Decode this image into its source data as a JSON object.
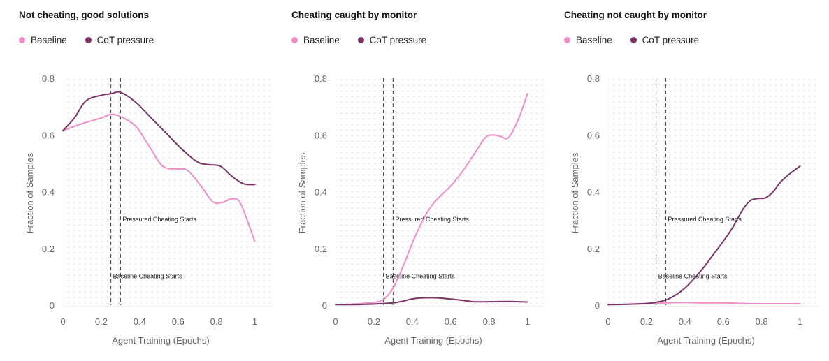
{
  "colors": {
    "baseline": "#f08cc8",
    "cot": "#7b3366"
  },
  "legend": {
    "baseline": "Baseline",
    "cot": "CoT pressure"
  },
  "chart_data": [
    {
      "type": "line",
      "title": "Not cheating, good solutions",
      "xlabel": "Agent Training (Epochs)",
      "ylabel": "Fraction of Samples",
      "xlim": [
        0,
        1.1
      ],
      "ylim": [
        0,
        0.8
      ],
      "xticks": [
        0,
        0.2,
        0.4,
        0.6,
        0.8,
        1
      ],
      "xtick_labels": [
        "0",
        "0.2",
        "0.4",
        "0.6",
        "0.8",
        "1"
      ],
      "yticks": [
        0,
        0.2,
        0.4,
        0.6,
        0.8
      ],
      "ytick_labels": [
        "0",
        "0.2",
        "0.4",
        "0.6",
        "0.8"
      ],
      "vlines": [
        {
          "x": 0.25,
          "label": "Baseline Cheating Starts",
          "label_y": 0.105
        },
        {
          "x": 0.3,
          "label": "Pressured Cheating Starts",
          "label_y": 0.305
        }
      ],
      "series": [
        {
          "name": "Baseline",
          "x": [
            0,
            0.1,
            0.2,
            0.25,
            0.3,
            0.38,
            0.45,
            0.52,
            0.6,
            0.65,
            0.72,
            0.78,
            0.83,
            0.88,
            0.92,
            0.96,
            1.0
          ],
          "y": [
            0.615,
            0.64,
            0.66,
            0.672,
            0.665,
            0.63,
            0.56,
            0.49,
            0.48,
            0.475,
            0.42,
            0.365,
            0.362,
            0.375,
            0.365,
            0.3,
            0.225
          ]
        },
        {
          "name": "CoT pressure",
          "x": [
            0,
            0.06,
            0.12,
            0.2,
            0.25,
            0.3,
            0.38,
            0.46,
            0.54,
            0.62,
            0.7,
            0.76,
            0.82,
            0.88,
            0.94,
            1.0
          ],
          "y": [
            0.615,
            0.66,
            0.72,
            0.74,
            0.745,
            0.75,
            0.715,
            0.66,
            0.605,
            0.55,
            0.505,
            0.495,
            0.49,
            0.455,
            0.428,
            0.425
          ]
        }
      ]
    },
    {
      "type": "line",
      "title": "Cheating caught by monitor",
      "xlabel": "Agent Training (Epochs)",
      "ylabel": "Fraction of Samples",
      "xlim": [
        0,
        1.1
      ],
      "ylim": [
        0,
        0.8
      ],
      "xticks": [
        0,
        0.2,
        0.4,
        0.6,
        0.8,
        1
      ],
      "xtick_labels": [
        "0",
        "0.2",
        "0.4",
        "0.6",
        "0.8",
        "1"
      ],
      "yticks": [
        0,
        0.2,
        0.4,
        0.6,
        0.8
      ],
      "ytick_labels": [
        "0",
        "0.2",
        "0.4",
        "0.6",
        "0.8"
      ],
      "vlines": [
        {
          "x": 0.25,
          "label": "Baseline Cheating Starts",
          "label_y": 0.105
        },
        {
          "x": 0.3,
          "label": "Pressured Cheating Starts",
          "label_y": 0.305
        }
      ],
      "series": [
        {
          "name": "Baseline",
          "x": [
            0,
            0.1,
            0.2,
            0.25,
            0.3,
            0.36,
            0.42,
            0.5,
            0.6,
            0.66,
            0.72,
            0.78,
            0.82,
            0.86,
            0.9,
            0.95,
            1.0
          ],
          "y": [
            0.002,
            0.004,
            0.01,
            0.02,
            0.06,
            0.15,
            0.25,
            0.35,
            0.42,
            0.47,
            0.53,
            0.59,
            0.6,
            0.595,
            0.59,
            0.65,
            0.745
          ]
        },
        {
          "name": "CoT pressure",
          "x": [
            0,
            0.1,
            0.2,
            0.3,
            0.35,
            0.42,
            0.5,
            0.58,
            0.65,
            0.72,
            0.8,
            0.9,
            1.0
          ],
          "y": [
            0.002,
            0.002,
            0.004,
            0.008,
            0.014,
            0.024,
            0.026,
            0.023,
            0.018,
            0.012,
            0.012,
            0.013,
            0.011
          ]
        }
      ]
    },
    {
      "type": "line",
      "title": "Cheating not caught by monitor",
      "xlabel": "Agent Training (Epochs)",
      "ylabel": "Fraction of Samples",
      "xlim": [
        0,
        1.1
      ],
      "ylim": [
        0,
        0.8
      ],
      "xticks": [
        0,
        0.2,
        0.4,
        0.6,
        0.8,
        1
      ],
      "xtick_labels": [
        "0",
        "0.2",
        "0.4",
        "0.6",
        "0.8",
        "1"
      ],
      "yticks": [
        0,
        0.2,
        0.4,
        0.6,
        0.8
      ],
      "ytick_labels": [
        "0",
        "0.2",
        "0.4",
        "0.6",
        "0.8"
      ],
      "vlines": [
        {
          "x": 0.25,
          "label": "Baseline Cheating Starts",
          "label_y": 0.105
        },
        {
          "x": 0.3,
          "label": "Pressured Cheating Starts",
          "label_y": 0.305
        }
      ],
      "series": [
        {
          "name": "Baseline",
          "x": [
            0,
            0.1,
            0.2,
            0.3,
            0.4,
            0.5,
            0.6,
            0.7,
            0.8,
            0.9,
            1.0
          ],
          "y": [
            0.002,
            0.003,
            0.005,
            0.008,
            0.009,
            0.008,
            0.008,
            0.006,
            0.005,
            0.005,
            0.005
          ]
        },
        {
          "name": "CoT pressure",
          "x": [
            0,
            0.1,
            0.2,
            0.25,
            0.3,
            0.35,
            0.4,
            0.45,
            0.5,
            0.55,
            0.6,
            0.65,
            0.7,
            0.74,
            0.78,
            0.82,
            0.86,
            0.9,
            0.95,
            1.0
          ],
          "y": [
            0.002,
            0.003,
            0.006,
            0.01,
            0.018,
            0.035,
            0.06,
            0.095,
            0.135,
            0.18,
            0.225,
            0.275,
            0.335,
            0.368,
            0.376,
            0.378,
            0.4,
            0.435,
            0.465,
            0.49
          ]
        }
      ]
    }
  ]
}
